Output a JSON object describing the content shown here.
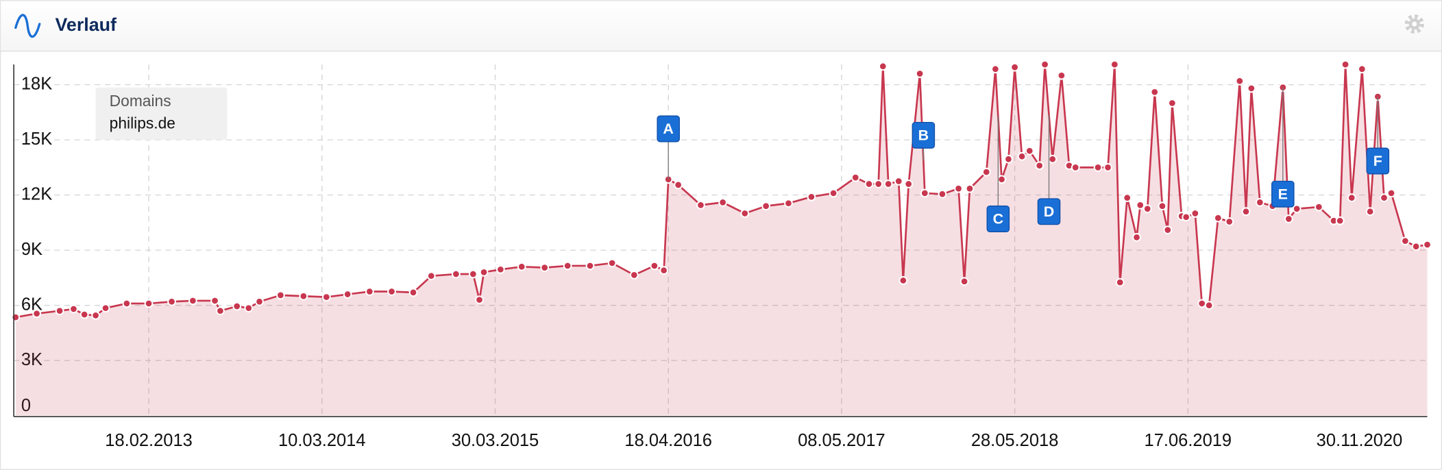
{
  "chart_data": {
    "type": "line",
    "title": "Verlauf",
    "legend_title": "Domains",
    "x": [
      "28.04.2012",
      "14.06.2012",
      "04.08.2012",
      "04.09.2012",
      "28.09.2012",
      "23.10.2012",
      "14.11.2012",
      "31.12.2012",
      "18.02.2013",
      "10.04.2013",
      "27.05.2013",
      "15.07.2013",
      "27.07.2013",
      "02.09.2013",
      "28.09.2013",
      "22.10.2013",
      "08.12.2013",
      "28.01.2014",
      "20.03.2014",
      "06.05.2014",
      "24.06.2014",
      "12.08.2014",
      "29.09.2014",
      "08.11.2014",
      "02.01.2015",
      "09.02.2015",
      "23.02.2015",
      "05.03.2015",
      "11.04.2015",
      "28.05.2015",
      "18.07.2015",
      "07.09.2015",
      "27.10.2015",
      "15.12.2015",
      "02.02.2016",
      "18.03.2016",
      "08.04.2016",
      "18.04.2016",
      "10.05.2016",
      "29.06.2016",
      "17.08.2016",
      "05.10.2016",
      "21.11.2016",
      "10.01.2017",
      "02.03.2017",
      "20.04.2017",
      "08.06.2017",
      "08.07.2017",
      "29.07.2017",
      "08.08.2017",
      "20.08.2017",
      "12.09.2017",
      "22.09.2017",
      "04.10.2017",
      "29.10.2017",
      "09.11.2017",
      "18.12.2017",
      "23.01.2018",
      "05.02.2018",
      "17.02.2018",
      "26.03.2018",
      "15.04.2018",
      "29.04.2018",
      "14.05.2018",
      "28.05.2018",
      "13.06.2018",
      "30.06.2018",
      "22.07.2018",
      "03.08.2018",
      "20.08.2018",
      "09.09.2018",
      "26.09.2018",
      "10.10.2018",
      "29.11.2018",
      "21.12.2018",
      "05.01.2019",
      "17.01.2019",
      "02.02.2019",
      "23.02.2019",
      "03.03.2019",
      "19.03.2019",
      "04.04.2019",
      "21.04.2019",
      "03.05.2019",
      "13.05.2019",
      "03.06.2019",
      "13.06.2019",
      "03.07.2019",
      "18.07.2019",
      "03.08.2019",
      "23.08.2019",
      "17.09.2019",
      "10.10.2019",
      "24.10.2019",
      "05.11.2019",
      "24.11.2019",
      "22.12.2019",
      "14.01.2020",
      "27.01.2020",
      "14.02.2020",
      "03.04.2020",
      "06.05.2020",
      "20.05.2020",
      "01.06.2020",
      "15.06.2020",
      "08.07.2020",
      "26.07.2020",
      "12.08.2020",
      "26.08.2020",
      "11.09.2020",
      "12.10.2020",
      "05.11.2020",
      "30.11.2020"
    ],
    "series": [
      {
        "name": "philips.de",
        "color": "#c8374f",
        "values": [
          5350,
          5550,
          5700,
          5800,
          5500,
          5450,
          5850,
          6100,
          6100,
          6200,
          6250,
          6250,
          5700,
          5950,
          5850,
          6200,
          6550,
          6500,
          6450,
          6600,
          6750,
          6750,
          6700,
          7600,
          7700,
          7700,
          6300,
          7800,
          7950,
          8100,
          8050,
          8150,
          8150,
          8300,
          7650,
          8150,
          7900,
          12850,
          12550,
          11450,
          11600,
          11000,
          11400,
          11550,
          11900,
          12100,
          12950,
          12600,
          12600,
          19000,
          12600,
          12750,
          7350,
          12600,
          18600,
          12100,
          12050,
          12350,
          7300,
          12350,
          13250,
          18850,
          12850,
          13950,
          18950,
          14100,
          14400,
          13600,
          19100,
          13950,
          18500,
          13600,
          13500,
          13500,
          13500,
          19100,
          7250,
          11850,
          9700,
          11450,
          11250,
          17600,
          11400,
          10100,
          17000,
          10850,
          10800,
          11000,
          6100,
          6000,
          10750,
          10550,
          18200,
          11100,
          17800,
          11600,
          11400,
          17850,
          10700,
          11250,
          11350,
          10600,
          10600,
          19100,
          11850,
          18850,
          11100,
          17350,
          11850,
          12100,
          9500,
          9200,
          9300
        ]
      }
    ],
    "xlim": [
      "24.04.2012",
      "30.11.2020"
    ],
    "xticks": [
      "18.02.2013",
      "10.03.2014",
      "30.03.2015",
      "18.04.2016",
      "08.05.2017",
      "28.05.2018",
      "17.06.2019",
      "30.11.2020"
    ],
    "ylim": [
      0,
      19100
    ],
    "yticks": [
      0,
      {
        "value": 3000,
        "label": "3K"
      },
      {
        "value": 6000,
        "label": "6K"
      },
      {
        "value": 9000,
        "label": "9K"
      },
      {
        "value": 12000,
        "label": "12K"
      },
      {
        "value": 15000,
        "label": "15K"
      },
      {
        "value": 18000,
        "label": "18K"
      }
    ],
    "grid": true,
    "area": true,
    "markers": true,
    "annotations": [
      {
        "label": "A",
        "x": "18.04.2016"
      },
      {
        "label": "B",
        "x": "06.11.2017"
      },
      {
        "label": "C",
        "x": "21.04.2018"
      },
      {
        "label": "D",
        "x": "12.08.2018"
      },
      {
        "label": "E",
        "x": "14.01.2020"
      },
      {
        "label": "F",
        "x": "12.08.2020"
      }
    ]
  }
}
